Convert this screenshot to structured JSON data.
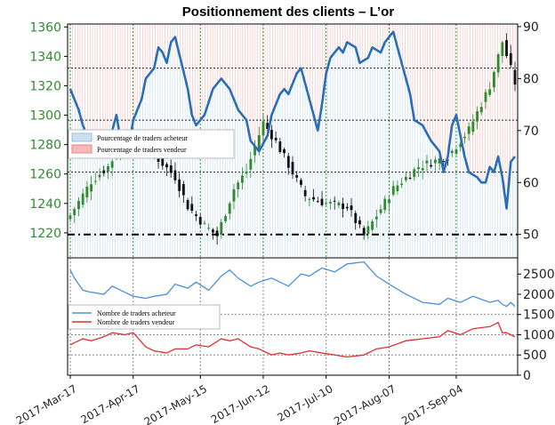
{
  "chart_data": {
    "title": "Positionnement des clients – L’or",
    "top_panel": {
      "type": "candlestick+line",
      "left_axis": {
        "ylim": [
          1203,
          1362
        ],
        "ticks": [
          1220,
          1240,
          1260,
          1280,
          1300,
          1320,
          1340,
          1360
        ]
      },
      "right_axis": {
        "ylim": [
          45.5,
          90.5
        ],
        "ticks": [
          50,
          60,
          70,
          80,
          90
        ]
      },
      "horizontal_levels": [
        {
          "axis": "right",
          "value": 72
        },
        {
          "axis": "right",
          "value": 62
        },
        {
          "axis": "right",
          "value": 82
        },
        {
          "axis": "right",
          "value": 50,
          "style": "dashed-black"
        }
      ],
      "legend": [
        {
          "label": "Pourcentage de traders acheteur",
          "color": "#c9dff2"
        },
        {
          "label": "Pourcentage de traders vendeur",
          "color": "#f4b9b9"
        }
      ],
      "price_path": {
        "x": [
          0,
          5,
          9,
          14,
          21,
          25,
          28,
          32,
          35,
          39,
          42,
          46,
          49,
          56,
          61,
          66,
          70,
          77,
          83,
          90,
          95,
          100,
          103,
          106
        ],
        "close": [
          1232,
          1255,
          1265,
          1288,
          1270,
          1258,
          1238,
          1225,
          1218,
          1250,
          1262,
          1295,
          1282,
          1245,
          1240,
          1238,
          1218,
          1250,
          1265,
          1272,
          1290,
          1320,
          1350,
          1322
        ]
      },
      "pct_long_series": {
        "name": "Pourcentage de traders acheteur",
        "x": [
          0,
          2,
          3,
          5,
          6,
          8,
          10,
          11,
          12,
          14,
          15,
          17,
          18,
          20,
          21,
          22,
          23,
          24,
          25,
          28,
          29,
          30,
          32,
          34,
          36,
          38,
          39,
          40,
          42,
          43,
          45,
          47,
          48,
          50,
          51,
          52,
          53,
          54,
          55,
          57,
          59,
          60,
          61,
          62,
          64,
          65,
          66,
          68,
          69,
          71,
          72,
          74,
          75,
          77,
          78,
          79,
          80,
          81,
          82,
          84,
          86,
          88,
          89,
          90,
          91,
          92,
          93,
          94,
          95,
          97,
          98,
          99,
          100,
          101,
          102,
          103,
          104,
          105,
          106
        ],
        "values": [
          78,
          74,
          71,
          67,
          65,
          66,
          70,
          73,
          68,
          67,
          72,
          76,
          80,
          82,
          86,
          85,
          83,
          87,
          88,
          78,
          73,
          71,
          73,
          78,
          80,
          78,
          76,
          74,
          72,
          68,
          66,
          69,
          73,
          77,
          78,
          77,
          79,
          81,
          82,
          76,
          70,
          75,
          81,
          84,
          86,
          85,
          87,
          86,
          83,
          84,
          86,
          85,
          87,
          89,
          86,
          83,
          80,
          77,
          72,
          71,
          68,
          66,
          62,
          65,
          71,
          73,
          69,
          65,
          62,
          61,
          60,
          60,
          63,
          62,
          65,
          61,
          55,
          64,
          65
        ]
      }
    },
    "bottom_panel": {
      "type": "line",
      "ylim": [
        0,
        2900
      ],
      "ticks": [
        0,
        500,
        1000,
        1500,
        2000,
        2500
      ],
      "grid_levels": [
        500,
        1000,
        1500
      ],
      "series": [
        {
          "name": "Nombre de traders acheteur",
          "color": "#4a90e2",
          "x": [
            0,
            1,
            3,
            5,
            8,
            10,
            13,
            15,
            18,
            20,
            23,
            25,
            28,
            30,
            33,
            36,
            38,
            40,
            43,
            45,
            48,
            50,
            52,
            55,
            57,
            60,
            63,
            66,
            70,
            73,
            76,
            80,
            84,
            88,
            90,
            93,
            96,
            100,
            102,
            103,
            104,
            105,
            106
          ],
          "values": [
            2600,
            2400,
            2100,
            2050,
            2000,
            2200,
            2050,
            1950,
            1900,
            1950,
            2000,
            2250,
            2150,
            2300,
            2100,
            2450,
            2600,
            2400,
            2200,
            2300,
            2400,
            2300,
            2200,
            2500,
            2450,
            2650,
            2550,
            2750,
            2800,
            2450,
            2250,
            2000,
            1800,
            1750,
            1900,
            1800,
            1950,
            1800,
            1850,
            1750,
            1700,
            1800,
            1700
          ]
        },
        {
          "name": "Nombre de traders vendeur",
          "color": "#e03030",
          "x": [
            0,
            1,
            3,
            5,
            8,
            10,
            13,
            15,
            18,
            20,
            23,
            25,
            28,
            30,
            33,
            36,
            38,
            40,
            43,
            45,
            48,
            50,
            52,
            55,
            57,
            60,
            63,
            66,
            70,
            73,
            76,
            80,
            84,
            88,
            90,
            93,
            96,
            100,
            102,
            103,
            104,
            105,
            106
          ],
          "values": [
            750,
            800,
            900,
            850,
            950,
            1050,
            1000,
            1050,
            700,
            600,
            550,
            650,
            650,
            750,
            700,
            900,
            850,
            900,
            700,
            650,
            500,
            550,
            500,
            550,
            600,
            550,
            500,
            450,
            500,
            650,
            700,
            850,
            900,
            950,
            1100,
            1000,
            1150,
            1200,
            1300,
            1050,
            1050,
            1000,
            950
          ]
        }
      ]
    },
    "x_axis": {
      "labels": [
        "2017-Mar-17",
        "2017-Apr-17",
        "2017-May-15",
        "2017-Jun-12",
        "2017-Jul-10",
        "2017-Aug-07",
        "2017-Sep-04"
      ],
      "positions": [
        0,
        15,
        31,
        46,
        61,
        76,
        92
      ],
      "n_points": 107
    }
  }
}
